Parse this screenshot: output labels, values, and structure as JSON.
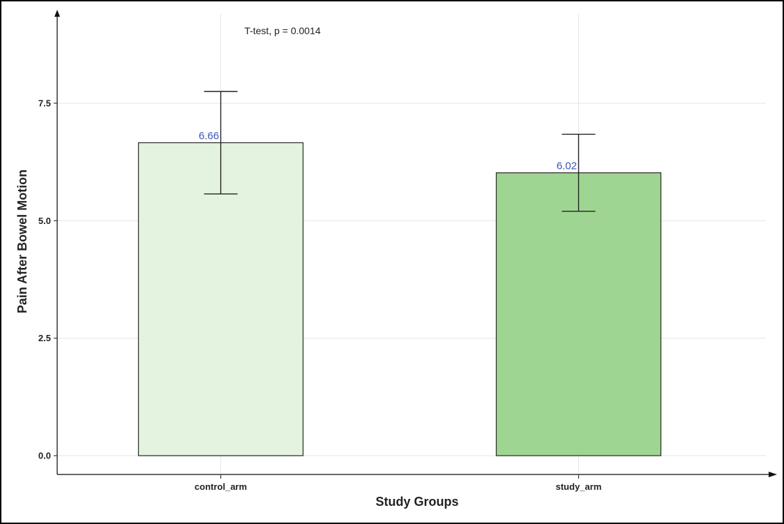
{
  "chart_data": {
    "type": "bar",
    "title": "",
    "annotation": "T-test, p = 0.0014",
    "xlabel": "Study Groups",
    "ylabel": "Pain After Bowel Motion",
    "categories": [
      "control_arm",
      "study_arm"
    ],
    "values": [
      6.66,
      6.02
    ],
    "value_labels": [
      "6.66",
      "6.02"
    ],
    "error_bars": [
      {
        "lower": 5.57,
        "upper": 7.75
      },
      {
        "lower": 5.2,
        "upper": 6.84
      }
    ],
    "colors": [
      "#e4f3df",
      "#9fd592"
    ],
    "bar_border_color": "#333333",
    "label_color": "#3a55b4",
    "ylim": [
      -0.4,
      9.4
    ],
    "yticks": [
      0.0,
      2.5,
      5.0,
      7.5
    ],
    "ytick_labels": [
      "0.0",
      "2.5",
      "5.0",
      "7.5"
    ],
    "grid": true
  }
}
